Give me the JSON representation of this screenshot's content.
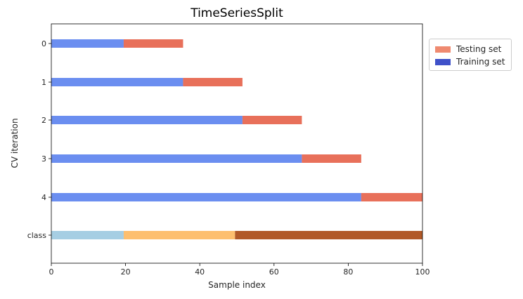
{
  "chart_data": {
    "type": "bar",
    "title": "TimeSeriesSplit",
    "xlabel": "Sample index",
    "ylabel": "CV iteration",
    "xlim": [
      0,
      100
    ],
    "xticks": [
      "0",
      "20",
      "40",
      "60",
      "80",
      "100"
    ],
    "categories": [
      "0",
      "1",
      "2",
      "3",
      "4",
      "class"
    ],
    "series": [
      {
        "name": "Training set",
        "color": "#6b8ef0",
        "values": [
          [
            0,
            19.5
          ],
          [
            0,
            35.5
          ],
          [
            0,
            51.5
          ],
          [
            0,
            67.5
          ],
          [
            0,
            83.5
          ],
          null
        ]
      },
      {
        "name": "Testing set",
        "color": "#e8705a",
        "values": [
          [
            19.5,
            35.5
          ],
          [
            35.5,
            51.5
          ],
          [
            51.5,
            67.5
          ],
          [
            67.5,
            83.5
          ],
          [
            83.5,
            100
          ],
          null
        ]
      }
    ],
    "class_segments": [
      {
        "start": 0,
        "end": 19.5,
        "color": "#a6cee3"
      },
      {
        "start": 19.5,
        "end": 49.5,
        "color": "#fdbf6f"
      },
      {
        "start": 49.5,
        "end": 100,
        "color": "#b15928"
      }
    ],
    "legend": {
      "position": "outside-right",
      "items": [
        {
          "label": "Testing set",
          "color": "#ef8a70"
        },
        {
          "label": "Training set",
          "color": "#3f51c9"
        }
      ]
    },
    "grid": false
  }
}
